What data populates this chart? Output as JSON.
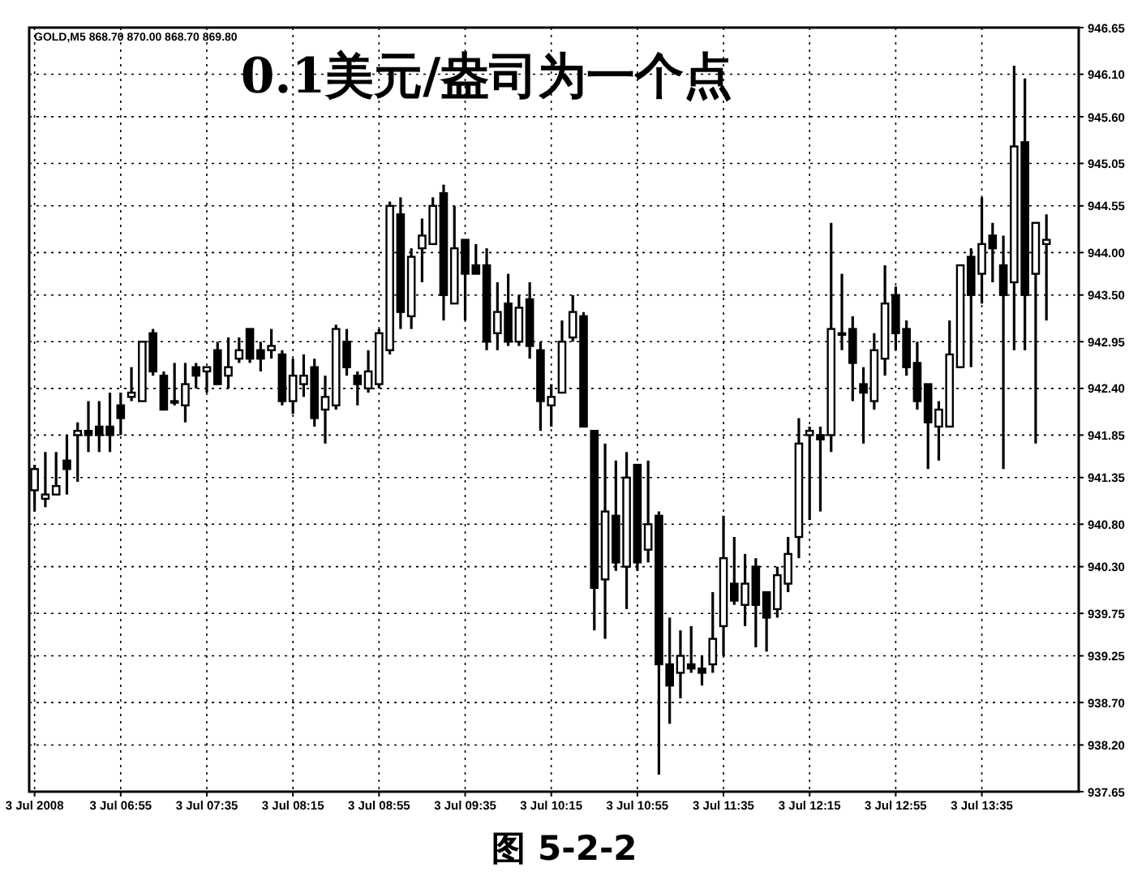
{
  "chart_data": {
    "type": "candlestick",
    "title": "0.1美元/盎司为一个点",
    "annotations": [
      "GOLD,M5 868.70 870.00 868.70 869.80",
      "图 5-2-2"
    ],
    "categories": [
      "3 Jul 2008",
      null,
      null,
      null,
      null,
      null,
      null,
      null,
      "3 Jul 06:55",
      null,
      null,
      null,
      null,
      null,
      null,
      null,
      "3 Jul 07:35",
      null,
      null,
      null,
      null,
      null,
      null,
      null,
      "3 Jul 08:15",
      null,
      null,
      null,
      null,
      null,
      null,
      null,
      "3 Jul 08:55",
      null,
      null,
      null,
      null,
      null,
      null,
      null,
      "3 Jul 09:35",
      null,
      null,
      null,
      null,
      null,
      null,
      null,
      "3 Jul 10:15",
      null,
      null,
      null,
      null,
      null,
      null,
      null,
      "3 Jul 10:55",
      null,
      null,
      null,
      null,
      null,
      null,
      null,
      "3 Jul 11:35",
      null,
      null,
      null,
      null,
      null,
      null,
      null,
      "3 Jul 12:15",
      null,
      null,
      null,
      null,
      null,
      null,
      null,
      "3 Jul 12:55",
      null,
      null,
      null,
      null,
      null,
      null,
      null,
      "3 Jul 13:35",
      null,
      null,
      null,
      null,
      null,
      null
    ],
    "color": "#000000",
    "ohlc": [
      [
        941.2,
        941.5,
        940.95,
        941.45
      ],
      [
        941.1,
        941.65,
        941.0,
        941.15
      ],
      [
        941.15,
        941.65,
        941.15,
        941.25
      ],
      [
        941.55,
        941.85,
        941.15,
        941.45
      ],
      [
        941.85,
        942.0,
        941.3,
        941.9
      ],
      [
        941.9,
        942.25,
        941.65,
        941.85
      ],
      [
        941.95,
        942.25,
        941.65,
        941.85
      ],
      [
        941.95,
        942.35,
        941.65,
        941.85
      ],
      [
        942.2,
        942.35,
        941.85,
        942.05
      ],
      [
        942.3,
        942.65,
        942.25,
        942.35
      ],
      [
        942.25,
        942.95,
        942.25,
        942.95
      ],
      [
        943.05,
        943.1,
        942.55,
        942.6
      ],
      [
        942.55,
        942.6,
        942.15,
        942.15
      ],
      [
        942.25,
        942.7,
        942.2,
        942.25
      ],
      [
        942.2,
        942.7,
        942.0,
        942.45
      ],
      [
        942.65,
        942.7,
        942.4,
        942.55
      ],
      [
        942.6,
        942.65,
        942.35,
        942.65
      ],
      [
        942.85,
        942.95,
        942.45,
        942.45
      ],
      [
        942.55,
        943.0,
        942.4,
        942.65
      ],
      [
        942.75,
        943.0,
        942.7,
        942.85
      ],
      [
        943.1,
        943.1,
        942.7,
        942.75
      ],
      [
        942.85,
        942.95,
        942.6,
        942.75
      ],
      [
        942.85,
        943.1,
        942.75,
        942.9
      ],
      [
        942.8,
        942.85,
        942.2,
        942.25
      ],
      [
        942.25,
        942.75,
        942.1,
        942.55
      ],
      [
        942.45,
        942.8,
        942.3,
        942.55
      ],
      [
        942.65,
        942.75,
        941.95,
        942.05
      ],
      [
        942.15,
        942.55,
        941.75,
        942.3
      ],
      [
        942.2,
        943.15,
        942.15,
        943.1
      ],
      [
        942.95,
        943.1,
        942.55,
        942.65
      ],
      [
        942.55,
        942.6,
        942.2,
        942.45
      ],
      [
        942.4,
        942.85,
        942.35,
        942.6
      ],
      [
        942.45,
        943.1,
        942.4,
        943.05
      ],
      [
        942.85,
        944.6,
        942.8,
        944.55
      ],
      [
        944.45,
        944.65,
        943.1,
        943.3
      ],
      [
        943.25,
        944.05,
        943.1,
        943.95
      ],
      [
        944.05,
        944.4,
        943.65,
        944.2
      ],
      [
        944.1,
        944.65,
        944.1,
        944.55
      ],
      [
        944.7,
        944.8,
        943.2,
        943.5
      ],
      [
        943.4,
        944.55,
        943.4,
        944.05
      ],
      [
        944.15,
        944.15,
        943.2,
        943.75
      ],
      [
        943.85,
        944.1,
        943.75,
        943.75
      ],
      [
        943.85,
        944.05,
        942.85,
        942.95
      ],
      [
        943.05,
        943.65,
        942.85,
        943.3
      ],
      [
        943.4,
        943.75,
        942.9,
        942.95
      ],
      [
        942.95,
        943.5,
        942.9,
        943.35
      ],
      [
        943.45,
        943.65,
        942.75,
        942.9
      ],
      [
        942.85,
        942.95,
        941.9,
        942.25
      ],
      [
        942.2,
        942.45,
        941.95,
        942.3
      ],
      [
        942.35,
        943.2,
        942.35,
        942.95
      ],
      [
        943.0,
        943.5,
        942.95,
        943.3
      ],
      [
        943.25,
        943.3,
        941.95,
        941.95
      ],
      [
        941.9,
        941.9,
        939.55,
        940.05
      ],
      [
        940.15,
        941.75,
        939.45,
        940.95
      ],
      [
        940.9,
        941.55,
        940.25,
        940.35
      ],
      [
        940.3,
        941.65,
        939.8,
        941.35
      ],
      [
        941.5,
        941.5,
        940.25,
        940.35
      ],
      [
        940.5,
        941.55,
        940.35,
        940.8
      ],
      [
        940.9,
        940.95,
        937.85,
        939.15
      ],
      [
        939.15,
        939.7,
        938.45,
        938.9
      ],
      [
        939.05,
        939.55,
        938.75,
        939.25
      ],
      [
        939.15,
        939.6,
        939.05,
        939.1
      ],
      [
        939.1,
        939.25,
        938.9,
        939.05
      ],
      [
        939.15,
        940.0,
        939.05,
        939.45
      ],
      [
        939.6,
        940.9,
        939.25,
        940.4
      ],
      [
        940.1,
        940.65,
        939.85,
        939.9
      ],
      [
        939.85,
        940.45,
        939.6,
        940.1
      ],
      [
        940.3,
        940.4,
        939.35,
        939.85
      ],
      [
        940.0,
        940.0,
        939.3,
        939.7
      ],
      [
        939.8,
        940.3,
        939.7,
        940.2
      ],
      [
        940.1,
        940.65,
        940.0,
        940.45
      ],
      [
        940.65,
        942.05,
        940.4,
        941.75
      ],
      [
        941.85,
        941.95,
        940.85,
        941.9
      ],
      [
        941.85,
        941.95,
        940.95,
        941.8
      ],
      [
        941.85,
        944.35,
        941.65,
        943.1
      ],
      [
        943.05,
        943.75,
        942.85,
        943.05
      ],
      [
        943.1,
        943.25,
        942.25,
        942.7
      ],
      [
        942.45,
        942.65,
        941.75,
        942.35
      ],
      [
        942.25,
        943.05,
        942.15,
        942.85
      ],
      [
        942.75,
        943.85,
        942.55,
        943.4
      ],
      [
        943.5,
        943.6,
        942.85,
        943.05
      ],
      [
        943.1,
        943.2,
        942.55,
        942.65
      ],
      [
        942.7,
        942.95,
        942.15,
        942.25
      ],
      [
        942.45,
        942.45,
        941.45,
        942.0
      ],
      [
        941.95,
        942.25,
        941.55,
        942.15
      ],
      [
        941.95,
        943.2,
        941.95,
        942.8
      ],
      [
        942.65,
        943.85,
        942.65,
        943.85
      ],
      [
        943.95,
        944.05,
        942.65,
        943.5
      ],
      [
        943.75,
        944.65,
        943.4,
        944.1
      ],
      [
        944.2,
        944.35,
        943.65,
        944.05
      ],
      [
        943.85,
        944.2,
        941.45,
        943.5
      ],
      [
        943.65,
        946.2,
        942.85,
        945.25
      ],
      [
        945.3,
        946.05,
        942.85,
        943.5
      ],
      [
        943.75,
        944.35,
        941.75,
        944.35
      ],
      [
        944.1,
        944.45,
        943.2,
        944.15
      ]
    ],
    "ylim": [
      937.65,
      946.65
    ],
    "yticks": [
      946.65,
      {
        "value": 946.1,
        "label": "946.10"
      },
      {
        "value": 945.6,
        "label": "945.60"
      },
      945.05,
      944.55,
      {
        "value": 944.0,
        "label": "944.00"
      },
      {
        "value": 943.5,
        "label": "943.50"
      },
      942.95,
      {
        "value": 942.4,
        "label": "942.40"
      },
      941.85,
      941.35,
      {
        "value": 940.8,
        "label": "940.80"
      },
      {
        "value": 940.3,
        "label": "940.30"
      },
      939.75,
      939.25,
      {
        "value": 938.7,
        "label": "938.70"
      },
      {
        "value": 938.2,
        "label": "938.20"
      },
      937.65
    ],
    "grid": true
  }
}
